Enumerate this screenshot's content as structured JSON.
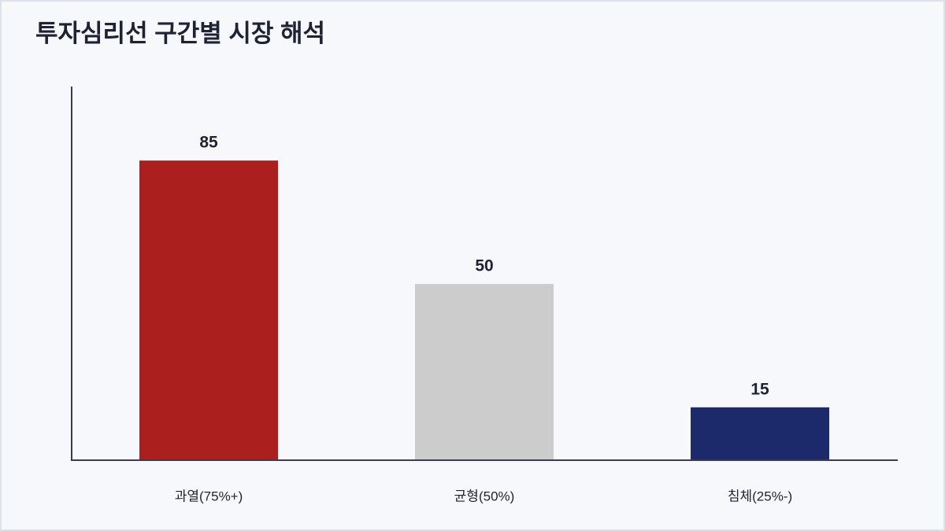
{
  "chart_data": {
    "type": "bar",
    "title": "투자심리선 구간별 시장 해석",
    "categories": [
      "과열(75%+)",
      "균형(50%)",
      "침체(25%-)"
    ],
    "values": [
      85,
      50,
      15
    ],
    "colors": [
      "#ab1f1f",
      "#cccccc",
      "#1c2a6b"
    ],
    "ylim": [
      0,
      106
    ]
  }
}
